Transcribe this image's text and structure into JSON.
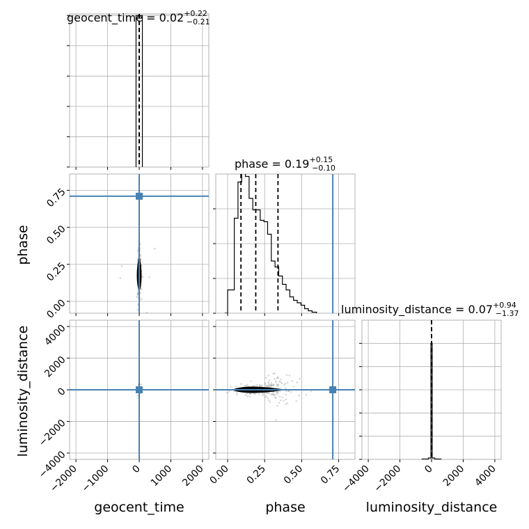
{
  "chart_data": {
    "type": "corner",
    "parameters": [
      "geocent_time",
      "phase",
      "luminosity_distance"
    ],
    "axis_labels": {
      "geocent_time": "geocent_time",
      "phase": "phase",
      "luminosity_distance": "luminosity_distance"
    },
    "titles": {
      "geocent_time": {
        "prefix": "geocent_time = ",
        "value": "0.02",
        "plus": "+0.22",
        "minus": "−0.21"
      },
      "phase": {
        "prefix": "phase = ",
        "value": "0.19",
        "plus": "+0.15",
        "minus": "−0.10"
      },
      "luminosity_distance": {
        "prefix": "luminosity_distance = ",
        "value": "0.07",
        "plus": "+0.94",
        "minus": "−1.37"
      }
    },
    "ranges": {
      "geocent_time": [
        -2200,
        2200
      ],
      "phase": [
        -0.08,
        0.86
      ],
      "luminosity_distance": [
        -4400,
        4400
      ]
    },
    "ticks": {
      "geocent_time": [
        -2000,
        -1000,
        0,
        1000,
        2000
      ],
      "phase_x": [
        0.0,
        0.25,
        0.5,
        0.75
      ],
      "phase_y": [
        0.0,
        0.25,
        0.5,
        0.75
      ],
      "luminosity_distance_x": [
        -4000,
        -2000,
        0,
        2000,
        4000
      ],
      "luminosity_distance_y": [
        -4000,
        -2000,
        0,
        2000,
        4000
      ]
    },
    "tick_labels": {
      "geocent_time": [
        "−2000",
        "−1000",
        "0",
        "1000",
        "2000"
      ],
      "phase_x": [
        "0.00",
        "0.25",
        "0.50",
        "0.75"
      ],
      "phase_y": [
        "0.00",
        "0.25",
        "0.50",
        "0.75"
      ],
      "luminosity_distance_x": [
        "−4000",
        "−2000",
        "0",
        "2000",
        "4000"
      ],
      "luminosity_distance_y": [
        "−4000",
        "−2000",
        "0",
        "2000",
        "4000"
      ]
    },
    "truths": {
      "geocent_time": 0.0,
      "phase": 0.71,
      "luminosity_distance": 0.0
    },
    "quantiles": {
      "geocent_time": [
        -0.19,
        0.02,
        0.24
      ],
      "phase": [
        0.09,
        0.19,
        0.34
      ],
      "luminosity_distance": [
        -1.3,
        0.07,
        1.01
      ]
    },
    "hist_geocent_time": {
      "edges": [
        -100,
        0,
        100
      ],
      "counts": [
        1.0,
        1.0
      ],
      "ylim": [
        0,
        1.01
      ]
    },
    "hist_phase": {
      "edges": [
        -0.02,
        0.0,
        0.045,
        0.07,
        0.095,
        0.12,
        0.145,
        0.17,
        0.195,
        0.22,
        0.245,
        0.27,
        0.295,
        0.32,
        0.345,
        0.37,
        0.395,
        0.42,
        0.445,
        0.47,
        0.495,
        0.52,
        0.545,
        0.57,
        0.6
      ],
      "counts": [
        0,
        0.067,
        0.273,
        0.377,
        0.427,
        0.393,
        0.33,
        0.297,
        0.297,
        0.267,
        0.263,
        0.227,
        0.15,
        0.133,
        0.107,
        0.083,
        0.067,
        0.047,
        0.037,
        0.03,
        0.023,
        0.013,
        0.007,
        0.003
      ],
      "ylim": [
        0,
        0.4
      ]
    },
    "hist_luminosity_distance": {
      "edges": [
        -600,
        -200,
        -40,
        40,
        200,
        600
      ],
      "counts": [
        0.003,
        0.012,
        1.0,
        0.012,
        0.003
      ],
      "ylim": [
        0,
        1.2
      ]
    }
  }
}
